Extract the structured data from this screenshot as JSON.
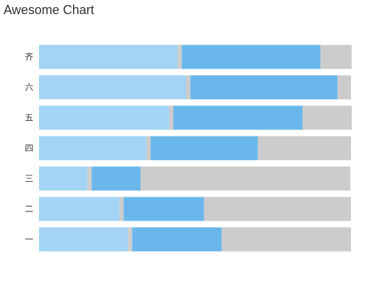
{
  "chart_data": {
    "type": "bar",
    "orientation": "horizontal",
    "stacked": true,
    "title": "Awesome Chart",
    "xlabel": "",
    "ylabel": "",
    "categories": [
      "一",
      "二",
      "三",
      "四",
      "五",
      "六",
      "齐"
    ],
    "series": [
      {
        "values": [
          125,
          113,
          68,
          151,
          183,
          207,
          195
        ]
      },
      {
        "values": [
          6,
          6,
          6,
          6,
          6,
          6,
          6
        ]
      },
      {
        "values": [
          126,
          113,
          69,
          151,
          182,
          207,
          195
        ]
      },
      {
        "values": [
          182,
          207,
          295,
          131,
          69,
          19,
          44
        ]
      }
    ],
    "xlim": [
      0,
      439
    ],
    "grid": false,
    "legend": "none",
    "colors": [
      "#a3d4f5",
      "#cccccc",
      "#6bb7eb",
      "#cccccc"
    ]
  }
}
